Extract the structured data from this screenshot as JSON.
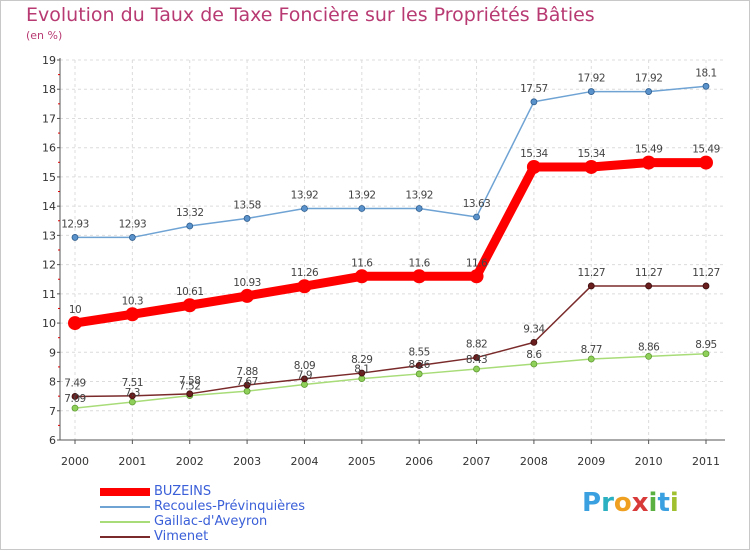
{
  "chart_data": {
    "type": "line",
    "title": "Evolution du Taux de Taxe Foncière sur les Propriétés Bâties",
    "subtitle": "(en %)",
    "categories": [
      "2000",
      "2001",
      "2002",
      "2003",
      "2004",
      "2005",
      "2006",
      "2007",
      "2008",
      "2009",
      "2010",
      "2011"
    ],
    "ylim": [
      6,
      19
    ],
    "yticks": [
      6,
      7,
      8,
      9,
      10,
      11,
      12,
      13,
      14,
      15,
      16,
      17,
      18,
      19
    ],
    "grid": true,
    "legend_position": "bottom-left",
    "series": [
      {
        "name": "BUZEINS",
        "color": "#ff0000",
        "values": [
          10,
          10.3,
          10.61,
          10.93,
          11.26,
          11.6,
          11.6,
          11.6,
          15.34,
          15.34,
          15.49,
          15.49
        ],
        "labels": [
          "10",
          "10.3",
          "10.61",
          "10.93",
          "11.26",
          "11.6",
          "11.6",
          "11.6",
          "15.34",
          "15.34",
          "15.49",
          "15.49"
        ]
      },
      {
        "name": "Recoules-Prévinquières",
        "color": "#6fa3d4",
        "values": [
          12.93,
          12.93,
          13.32,
          13.58,
          13.92,
          13.92,
          13.92,
          13.63,
          17.57,
          17.92,
          17.92,
          18.1
        ],
        "labels": [
          "12.93",
          "12.93",
          "13.32",
          "13.58",
          "13.92",
          "13.92",
          "13.92",
          "13.63",
          "17.57",
          "17.92",
          "17.92",
          "18.1"
        ]
      },
      {
        "name": "Gaillac-d'Aveyron",
        "color": "#a8dc78",
        "values": [
          7.09,
          7.3,
          7.52,
          7.67,
          7.9,
          8.1,
          8.26,
          8.43,
          8.6,
          8.77,
          8.86,
          8.95
        ],
        "labels": [
          "7.09",
          "7.3",
          "7.52",
          "7.67",
          "7.9",
          "8.1",
          "8.26",
          "8.43",
          "8.6",
          "8.77",
          "8.86",
          "8.95"
        ]
      },
      {
        "name": "Vimenet",
        "color": "#7a2a2a",
        "values": [
          7.49,
          7.51,
          7.58,
          7.88,
          8.09,
          8.29,
          8.55,
          8.82,
          9.34,
          11.27,
          11.27,
          11.27
        ],
        "labels": [
          "7.49",
          "7.51",
          "7.58",
          "7.88",
          "8.09",
          "8.29",
          "8.55",
          "8.82",
          "9.34",
          "11.27",
          "11.27",
          "11.27"
        ]
      }
    ]
  },
  "legend": {
    "items": [
      {
        "label": "BUZEINS",
        "color": "#ff0000"
      },
      {
        "label": "Recoules-Prévinquières",
        "color": "#6fa3d4"
      },
      {
        "label": "Gaillac-d'Aveyron",
        "color": "#a8dc78"
      },
      {
        "label": "Vimenet",
        "color": "#7a2a2a"
      }
    ]
  },
  "brand": {
    "letters": [
      "P",
      "r",
      "o",
      "x",
      "i",
      "t",
      "i"
    ],
    "colors": [
      "#3aa0e0",
      "#2ab0c0",
      "#f0a020",
      "#d83a3a",
      "#5ab040",
      "#3aa0e0",
      "#a0c030"
    ]
  }
}
